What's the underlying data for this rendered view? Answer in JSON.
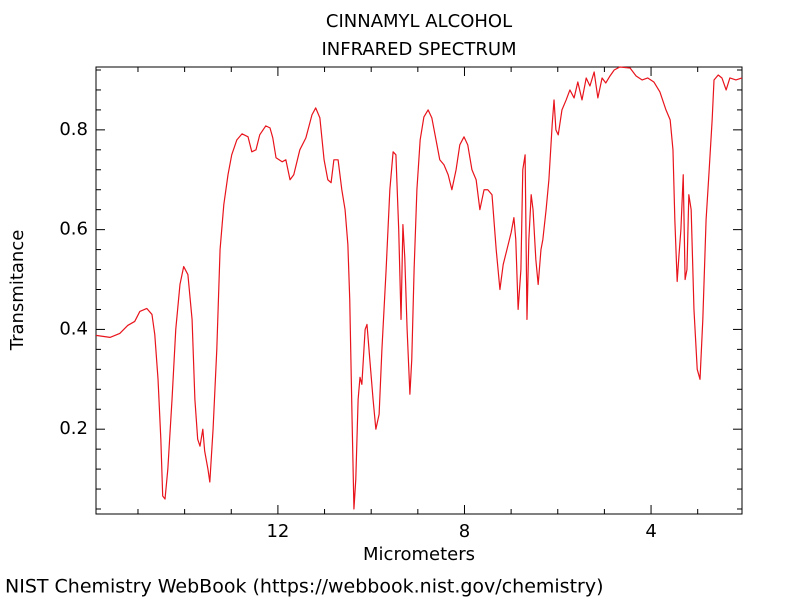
{
  "chart_data": {
    "type": "line",
    "title": "CINNAMYL ALCOHOL",
    "subtitle": "INFRARED SPECTRUM",
    "x_label": "Micrometers",
    "y_label": "Transmitance",
    "source": "NIST Chemistry WebBook (https://webbook.nist.gov/chemistry)",
    "color": "#e8141c",
    "xlim": [
      15.9,
      2.05
    ],
    "ylim": [
      0.03,
      0.926
    ],
    "xticks": [
      12,
      8,
      4
    ],
    "yticks": [
      0.2,
      0.4,
      0.6,
      0.8
    ],
    "xminorticks": [
      15,
      14,
      13,
      11,
      10,
      9,
      7,
      6,
      5,
      3
    ],
    "yminorticks": [
      0.04,
      0.08,
      0.12,
      0.16,
      0.24,
      0.28,
      0.32,
      0.36,
      0.44,
      0.48,
      0.52,
      0.56,
      0.64,
      0.68,
      0.72,
      0.76,
      0.84,
      0.88,
      0.92
    ],
    "x": [
      15.9,
      15.6,
      15.39,
      15.22,
      15.07,
      14.96,
      14.81,
      14.7,
      14.64,
      14.57,
      14.51,
      14.47,
      14.42,
      14.36,
      14.27,
      14.19,
      14.1,
      14.02,
      13.93,
      13.84,
      13.78,
      13.72,
      13.67,
      13.61,
      13.57,
      13.5,
      13.46,
      13.39,
      13.31,
      13.24,
      13.16,
      13.07,
      12.99,
      12.88,
      12.77,
      12.64,
      12.56,
      12.47,
      12.39,
      12.26,
      12.17,
      12.11,
      12.04,
      11.91,
      11.83,
      11.74,
      11.66,
      11.53,
      11.4,
      11.27,
      11.19,
      11.1,
      11.01,
      10.93,
      10.86,
      10.8,
      10.71,
      10.63,
      10.56,
      10.5,
      10.46,
      10.41,
      10.37,
      10.33,
      10.28,
      10.24,
      10.2,
      10.13,
      10.09,
      10.03,
      9.96,
      9.9,
      9.83,
      9.77,
      9.68,
      9.6,
      9.53,
      9.47,
      9.41,
      9.36,
      9.32,
      9.28,
      9.23,
      9.17,
      9.13,
      9.08,
      9.02,
      8.95,
      8.87,
      8.78,
      8.7,
      8.61,
      8.53,
      8.44,
      8.35,
      8.27,
      8.18,
      8.1,
      8.01,
      7.93,
      7.84,
      7.75,
      7.67,
      7.58,
      7.5,
      7.41,
      7.32,
      7.24,
      7.17,
      7.09,
      7.0,
      6.94,
      6.9,
      6.85,
      6.79,
      6.75,
      6.7,
      6.66,
      6.62,
      6.57,
      6.53,
      6.47,
      6.42,
      6.36,
      6.32,
      6.25,
      6.19,
      6.12,
      6.08,
      6.04,
      5.99,
      5.91,
      5.82,
      5.74,
      5.65,
      5.57,
      5.48,
      5.39,
      5.31,
      5.22,
      5.14,
      5.05,
      4.97,
      4.88,
      4.79,
      4.67,
      4.45,
      4.32,
      4.19,
      4.07,
      3.94,
      3.81,
      3.68,
      3.59,
      3.53,
      3.49,
      3.44,
      3.4,
      3.36,
      3.31,
      3.27,
      3.23,
      3.19,
      3.14,
      3.08,
      3.01,
      2.95,
      2.89,
      2.82,
      2.76,
      2.69,
      2.65,
      2.56,
      2.48,
      2.39,
      2.31,
      2.18,
      2.05
    ],
    "values": [
      0.388,
      0.384,
      0.392,
      0.408,
      0.416,
      0.436,
      0.442,
      0.43,
      0.39,
      0.3,
      0.18,
      0.066,
      0.06,
      0.12,
      0.26,
      0.4,
      0.49,
      0.526,
      0.51,
      0.42,
      0.26,
      0.18,
      0.166,
      0.2,
      0.156,
      0.12,
      0.094,
      0.2,
      0.36,
      0.56,
      0.65,
      0.71,
      0.75,
      0.78,
      0.792,
      0.786,
      0.756,
      0.76,
      0.79,
      0.808,
      0.804,
      0.784,
      0.744,
      0.736,
      0.74,
      0.7,
      0.71,
      0.76,
      0.784,
      0.83,
      0.844,
      0.824,
      0.74,
      0.7,
      0.694,
      0.74,
      0.74,
      0.68,
      0.64,
      0.57,
      0.46,
      0.22,
      0.04,
      0.1,
      0.26,
      0.304,
      0.29,
      0.4,
      0.41,
      0.34,
      0.26,
      0.2,
      0.23,
      0.36,
      0.52,
      0.68,
      0.756,
      0.75,
      0.6,
      0.42,
      0.61,
      0.544,
      0.4,
      0.27,
      0.34,
      0.52,
      0.68,
      0.78,
      0.826,
      0.84,
      0.824,
      0.78,
      0.74,
      0.73,
      0.71,
      0.68,
      0.72,
      0.77,
      0.786,
      0.77,
      0.72,
      0.7,
      0.64,
      0.68,
      0.68,
      0.67,
      0.56,
      0.48,
      0.53,
      0.56,
      0.594,
      0.624,
      0.58,
      0.44,
      0.52,
      0.72,
      0.75,
      0.42,
      0.58,
      0.67,
      0.64,
      0.54,
      0.49,
      0.56,
      0.58,
      0.64,
      0.7,
      0.81,
      0.86,
      0.8,
      0.79,
      0.84,
      0.86,
      0.88,
      0.864,
      0.896,
      0.86,
      0.904,
      0.888,
      0.916,
      0.864,
      0.904,
      0.894,
      0.908,
      0.92,
      0.926,
      0.924,
      0.908,
      0.9,
      0.904,
      0.896,
      0.876,
      0.84,
      0.82,
      0.76,
      0.62,
      0.496,
      0.55,
      0.6,
      0.71,
      0.5,
      0.52,
      0.67,
      0.64,
      0.44,
      0.32,
      0.3,
      0.42,
      0.62,
      0.71,
      0.82,
      0.9,
      0.91,
      0.904,
      0.88,
      0.904,
      0.9,
      0.904
    ]
  }
}
